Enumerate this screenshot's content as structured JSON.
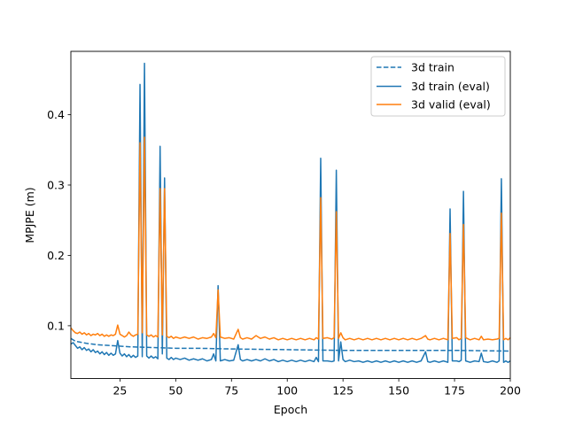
{
  "chart_data": {
    "type": "line",
    "title": "",
    "xlabel": "Epoch",
    "ylabel": "MPJPE (m)",
    "xlim": [
      3,
      200
    ],
    "ylim": [
      0.025,
      0.49
    ],
    "xticks": [
      25,
      50,
      75,
      100,
      125,
      150,
      175,
      200
    ],
    "xtick_labels": [
      "25",
      "50",
      "75",
      "100",
      "125",
      "150",
      "175",
      "200"
    ],
    "yticks": [
      0.1,
      0.2,
      0.3,
      0.4
    ],
    "ytick_labels": [
      "0.1",
      "0.2",
      "0.3",
      "0.4"
    ],
    "grid": false,
    "legend_position": "top-right",
    "series": [
      {
        "name": "3d train",
        "style": "dashed",
        "color": "#1f77b4",
        "points": [
          [
            3,
            0.082
          ],
          [
            5,
            0.078
          ],
          [
            10,
            0.075
          ],
          [
            15,
            0.073
          ],
          [
            20,
            0.072
          ],
          [
            30,
            0.07
          ],
          [
            40,
            0.069
          ],
          [
            50,
            0.068
          ],
          [
            60,
            0.068
          ],
          [
            75,
            0.067
          ],
          [
            100,
            0.066
          ],
          [
            125,
            0.065
          ],
          [
            150,
            0.065
          ],
          [
            175,
            0.065
          ],
          [
            200,
            0.064
          ]
        ]
      },
      {
        "name": "3d train (eval)",
        "style": "solid",
        "color": "#1f77b4",
        "points": [
          [
            3,
            0.074
          ],
          [
            4,
            0.076
          ],
          [
            5,
            0.072
          ],
          [
            6,
            0.068
          ],
          [
            7,
            0.07
          ],
          [
            8,
            0.066
          ],
          [
            9,
            0.069
          ],
          [
            10,
            0.065
          ],
          [
            11,
            0.067
          ],
          [
            12,
            0.063
          ],
          [
            13,
            0.066
          ],
          [
            14,
            0.062
          ],
          [
            15,
            0.064
          ],
          [
            16,
            0.06
          ],
          [
            17,
            0.063
          ],
          [
            18,
            0.059
          ],
          [
            19,
            0.062
          ],
          [
            20,
            0.058
          ],
          [
            21,
            0.061
          ],
          [
            22,
            0.058
          ],
          [
            23,
            0.06
          ],
          [
            24,
            0.079
          ],
          [
            25,
            0.061
          ],
          [
            26,
            0.057
          ],
          [
            27,
            0.06
          ],
          [
            28,
            0.056
          ],
          [
            29,
            0.059
          ],
          [
            30,
            0.055
          ],
          [
            31,
            0.058
          ],
          [
            32,
            0.055
          ],
          [
            33,
            0.057
          ],
          [
            34,
            0.443
          ],
          [
            35,
            0.056
          ],
          [
            36,
            0.473
          ],
          [
            37,
            0.057
          ],
          [
            38,
            0.054
          ],
          [
            39,
            0.057
          ],
          [
            40,
            0.054
          ],
          [
            41,
            0.056
          ],
          [
            42,
            0.053
          ],
          [
            43,
            0.355
          ],
          [
            44,
            0.06
          ],
          [
            45,
            0.31
          ],
          [
            46,
            0.054
          ],
          [
            47,
            0.052
          ],
          [
            48,
            0.055
          ],
          [
            49,
            0.052
          ],
          [
            50,
            0.054
          ],
          [
            52,
            0.052
          ],
          [
            54,
            0.054
          ],
          [
            56,
            0.051
          ],
          [
            58,
            0.053
          ],
          [
            60,
            0.051
          ],
          [
            62,
            0.053
          ],
          [
            64,
            0.05
          ],
          [
            66,
            0.052
          ],
          [
            67,
            0.06
          ],
          [
            68,
            0.05
          ],
          [
            69,
            0.157
          ],
          [
            70,
            0.05
          ],
          [
            72,
            0.052
          ],
          [
            74,
            0.05
          ],
          [
            76,
            0.051
          ],
          [
            78,
            0.073
          ],
          [
            79,
            0.052
          ],
          [
            80,
            0.05
          ],
          [
            82,
            0.052
          ],
          [
            84,
            0.05
          ],
          [
            86,
            0.052
          ],
          [
            88,
            0.05
          ],
          [
            90,
            0.053
          ],
          [
            92,
            0.05
          ],
          [
            94,
            0.052
          ],
          [
            96,
            0.049
          ],
          [
            98,
            0.051
          ],
          [
            100,
            0.049
          ],
          [
            102,
            0.051
          ],
          [
            104,
            0.049
          ],
          [
            106,
            0.051
          ],
          [
            108,
            0.049
          ],
          [
            110,
            0.051
          ],
          [
            112,
            0.049
          ],
          [
            113,
            0.055
          ],
          [
            114,
            0.049
          ],
          [
            115,
            0.338
          ],
          [
            116,
            0.05
          ],
          [
            118,
            0.05
          ],
          [
            120,
            0.049
          ],
          [
            121,
            0.05
          ],
          [
            122,
            0.321
          ],
          [
            123,
            0.05
          ],
          [
            124,
            0.077
          ],
          [
            125,
            0.052
          ],
          [
            126,
            0.049
          ],
          [
            128,
            0.051
          ],
          [
            130,
            0.049
          ],
          [
            132,
            0.05
          ],
          [
            134,
            0.048
          ],
          [
            136,
            0.05
          ],
          [
            138,
            0.048
          ],
          [
            140,
            0.05
          ],
          [
            142,
            0.048
          ],
          [
            144,
            0.05
          ],
          [
            146,
            0.048
          ],
          [
            148,
            0.05
          ],
          [
            150,
            0.048
          ],
          [
            152,
            0.05
          ],
          [
            154,
            0.048
          ],
          [
            156,
            0.05
          ],
          [
            158,
            0.048
          ],
          [
            160,
            0.05
          ],
          [
            162,
            0.063
          ],
          [
            163,
            0.049
          ],
          [
            164,
            0.048
          ],
          [
            166,
            0.05
          ],
          [
            168,
            0.048
          ],
          [
            170,
            0.05
          ],
          [
            172,
            0.048
          ],
          [
            173,
            0.266
          ],
          [
            174,
            0.05
          ],
          [
            176,
            0.05
          ],
          [
            177,
            0.049
          ],
          [
            178,
            0.051
          ],
          [
            179,
            0.291
          ],
          [
            180,
            0.05
          ],
          [
            182,
            0.048
          ],
          [
            184,
            0.05
          ],
          [
            186,
            0.049
          ],
          [
            187,
            0.061
          ],
          [
            188,
            0.049
          ],
          [
            190,
            0.048
          ],
          [
            192,
            0.05
          ],
          [
            194,
            0.048
          ],
          [
            195,
            0.05
          ],
          [
            196,
            0.309
          ],
          [
            197,
            0.048
          ],
          [
            198,
            0.05
          ],
          [
            199,
            0.048
          ],
          [
            200,
            0.05
          ]
        ]
      },
      {
        "name": "3d valid (eval)",
        "style": "solid",
        "color": "#ff7f0e",
        "points": [
          [
            3,
            0.097
          ],
          [
            4,
            0.093
          ],
          [
            5,
            0.09
          ],
          [
            6,
            0.089
          ],
          [
            7,
            0.091
          ],
          [
            8,
            0.088
          ],
          [
            9,
            0.09
          ],
          [
            10,
            0.087
          ],
          [
            11,
            0.089
          ],
          [
            12,
            0.086
          ],
          [
            13,
            0.088
          ],
          [
            14,
            0.087
          ],
          [
            15,
            0.089
          ],
          [
            16,
            0.086
          ],
          [
            17,
            0.088
          ],
          [
            18,
            0.085
          ],
          [
            19,
            0.087
          ],
          [
            20,
            0.085
          ],
          [
            21,
            0.087
          ],
          [
            22,
            0.086
          ],
          [
            23,
            0.088
          ],
          [
            24,
            0.101
          ],
          [
            25,
            0.088
          ],
          [
            26,
            0.086
          ],
          [
            27,
            0.084
          ],
          [
            28,
            0.086
          ],
          [
            29,
            0.091
          ],
          [
            30,
            0.087
          ],
          [
            31,
            0.085
          ],
          [
            32,
            0.087
          ],
          [
            33,
            0.088
          ],
          [
            34,
            0.36
          ],
          [
            35,
            0.09
          ],
          [
            36,
            0.368
          ],
          [
            37,
            0.087
          ],
          [
            38,
            0.085
          ],
          [
            39,
            0.087
          ],
          [
            40,
            0.084
          ],
          [
            41,
            0.086
          ],
          [
            42,
            0.084
          ],
          [
            43,
            0.295
          ],
          [
            44,
            0.087
          ],
          [
            45,
            0.295
          ],
          [
            46,
            0.085
          ],
          [
            47,
            0.083
          ],
          [
            48,
            0.085
          ],
          [
            49,
            0.082
          ],
          [
            50,
            0.084
          ],
          [
            52,
            0.082
          ],
          [
            54,
            0.084
          ],
          [
            56,
            0.082
          ],
          [
            58,
            0.084
          ],
          [
            60,
            0.081
          ],
          [
            62,
            0.083
          ],
          [
            64,
            0.082
          ],
          [
            66,
            0.084
          ],
          [
            67,
            0.089
          ],
          [
            68,
            0.083
          ],
          [
            69,
            0.151
          ],
          [
            70,
            0.084
          ],
          [
            72,
            0.082
          ],
          [
            74,
            0.083
          ],
          [
            76,
            0.081
          ],
          [
            78,
            0.095
          ],
          [
            79,
            0.083
          ],
          [
            80,
            0.081
          ],
          [
            82,
            0.083
          ],
          [
            84,
            0.081
          ],
          [
            86,
            0.086
          ],
          [
            88,
            0.082
          ],
          [
            90,
            0.084
          ],
          [
            92,
            0.081
          ],
          [
            94,
            0.083
          ],
          [
            96,
            0.08
          ],
          [
            98,
            0.082
          ],
          [
            100,
            0.08
          ],
          [
            102,
            0.082
          ],
          [
            104,
            0.08
          ],
          [
            106,
            0.082
          ],
          [
            108,
            0.08
          ],
          [
            110,
            0.082
          ],
          [
            112,
            0.08
          ],
          [
            113,
            0.083
          ],
          [
            114,
            0.081
          ],
          [
            115,
            0.282
          ],
          [
            116,
            0.082
          ],
          [
            118,
            0.083
          ],
          [
            120,
            0.081
          ],
          [
            121,
            0.083
          ],
          [
            122,
            0.262
          ],
          [
            123,
            0.082
          ],
          [
            124,
            0.09
          ],
          [
            125,
            0.083
          ],
          [
            126,
            0.08
          ],
          [
            128,
            0.082
          ],
          [
            130,
            0.08
          ],
          [
            132,
            0.082
          ],
          [
            134,
            0.08
          ],
          [
            136,
            0.082
          ],
          [
            138,
            0.08
          ],
          [
            140,
            0.082
          ],
          [
            142,
            0.08
          ],
          [
            144,
            0.082
          ],
          [
            146,
            0.08
          ],
          [
            148,
            0.082
          ],
          [
            150,
            0.08
          ],
          [
            152,
            0.082
          ],
          [
            154,
            0.08
          ],
          [
            156,
            0.082
          ],
          [
            158,
            0.08
          ],
          [
            160,
            0.082
          ],
          [
            162,
            0.086
          ],
          [
            163,
            0.081
          ],
          [
            164,
            0.08
          ],
          [
            166,
            0.082
          ],
          [
            168,
            0.08
          ],
          [
            170,
            0.082
          ],
          [
            172,
            0.08
          ],
          [
            173,
            0.231
          ],
          [
            174,
            0.082
          ],
          [
            176,
            0.083
          ],
          [
            177,
            0.08
          ],
          [
            178,
            0.082
          ],
          [
            179,
            0.244
          ],
          [
            180,
            0.083
          ],
          [
            182,
            0.08
          ],
          [
            184,
            0.082
          ],
          [
            186,
            0.08
          ],
          [
            187,
            0.085
          ],
          [
            188,
            0.08
          ],
          [
            190,
            0.081
          ],
          [
            192,
            0.08
          ],
          [
            194,
            0.081
          ],
          [
            195,
            0.082
          ],
          [
            196,
            0.26
          ],
          [
            197,
            0.08
          ],
          [
            198,
            0.082
          ],
          [
            199,
            0.08
          ],
          [
            200,
            0.083
          ]
        ]
      }
    ]
  }
}
